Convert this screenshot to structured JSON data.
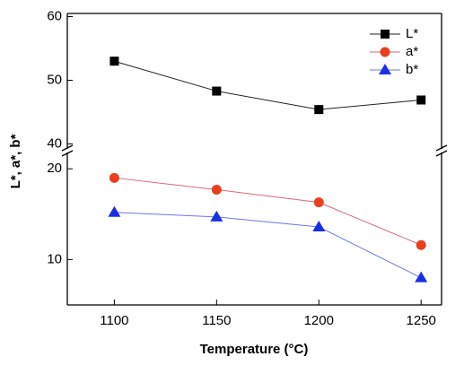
{
  "chart_data": {
    "type": "line",
    "title_x": "Temperature (°C)",
    "ylabel": "L*, a*, b*",
    "x": [
      1100,
      1150,
      1200,
      1250
    ],
    "xlim": [
      1077,
      1260
    ],
    "xticks": [
      1100,
      1150,
      1200,
      1250
    ],
    "ylim": [
      5,
      21.6
    ],
    "ylim_upper": [
      39.5,
      60.5
    ],
    "yticks": [
      10,
      20,
      40,
      50,
      60
    ],
    "legend": "upper right",
    "series": [
      {
        "name": "L*",
        "color": "#000000",
        "line_color": "#222222",
        "marker": "square",
        "values": [
          53.0,
          48.3,
          45.4,
          46.9
        ]
      },
      {
        "name": "a*",
        "color": "#e8401c",
        "line_color": "#d9667a",
        "marker": "circle",
        "values": [
          19.0,
          17.7,
          16.3,
          11.6
        ]
      },
      {
        "name": "b*",
        "color": "#1a2ee8",
        "line_color": "#6a7ae8",
        "marker": "triangle",
        "values": [
          15.2,
          14.7,
          13.6,
          8.0
        ]
      }
    ]
  }
}
